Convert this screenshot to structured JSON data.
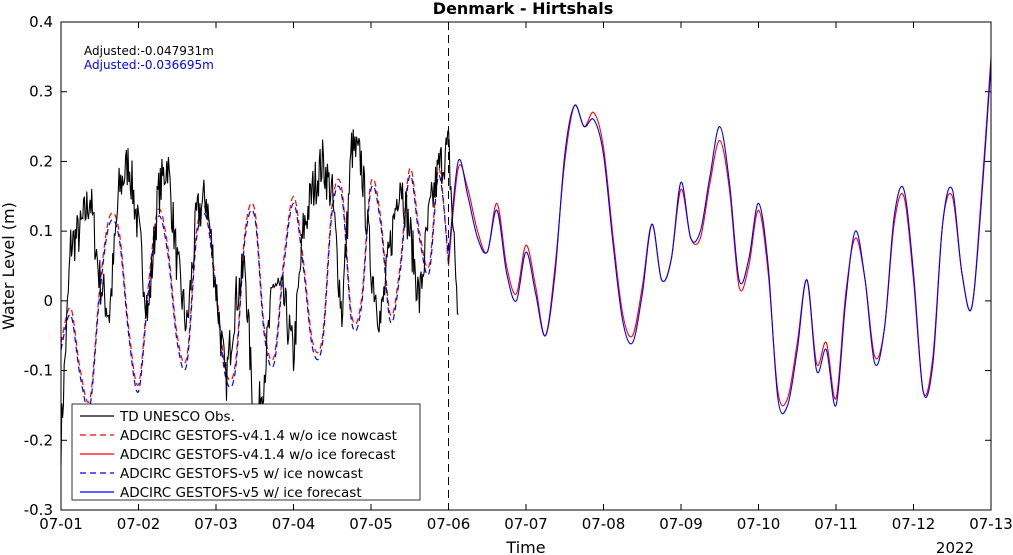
{
  "chart_data": {
    "type": "line",
    "title": "Denmark - Hirtshals",
    "xlabel": "Time",
    "ylabel": "Water Level (m)",
    "year_label": "2022",
    "xlim": [
      "2022-07-01",
      "2022-07-13"
    ],
    "ylim": [
      -0.3,
      0.4
    ],
    "x_ticks": [
      "07-01",
      "07-02",
      "07-03",
      "07-04",
      "07-05",
      "07-06",
      "07-07",
      "07-08",
      "07-09",
      "07-10",
      "07-11",
      "07-12",
      "07-13"
    ],
    "y_ticks": [
      "-0.3",
      "-0.2",
      "-0.1",
      "0",
      "0.1",
      "0.2",
      "0.3",
      "0.4"
    ],
    "nowcast_end_marker": "2022-07-06",
    "annotations": [
      {
        "text": "Adjusted:-0.047931m",
        "color": "#000000"
      },
      {
        "text": "Adjusted:-0.036695m",
        "color": "#0000ff"
      }
    ],
    "legend_location": "bottom-left",
    "series": [
      {
        "name": "TD UNESCO Obs.",
        "color": "#000000",
        "style": "solid",
        "noise": 0.035,
        "x": [
          "2022-07-01 00:00",
          "2022-07-01 03:00",
          "2022-07-01 06:00",
          "2022-07-01 09:00",
          "2022-07-01 12:00",
          "2022-07-01 15:00",
          "2022-07-01 18:00",
          "2022-07-01 21:00",
          "2022-07-02 00:00",
          "2022-07-02 03:00",
          "2022-07-02 06:00",
          "2022-07-02 09:00",
          "2022-07-02 12:00",
          "2022-07-02 15:00",
          "2022-07-02 18:00",
          "2022-07-02 21:00",
          "2022-07-03 00:00",
          "2022-07-03 03:00",
          "2022-07-03 06:00",
          "2022-07-03 09:00",
          "2022-07-03 12:00",
          "2022-07-03 15:00",
          "2022-07-03 18:00",
          "2022-07-03 21:00",
          "2022-07-04 00:00",
          "2022-07-04 03:00",
          "2022-07-04 06:00",
          "2022-07-04 09:00",
          "2022-07-04 12:00",
          "2022-07-04 15:00",
          "2022-07-04 18:00",
          "2022-07-04 21:00",
          "2022-07-05 00:00",
          "2022-07-05 03:00",
          "2022-07-05 06:00",
          "2022-07-05 09:00",
          "2022-07-05 12:00",
          "2022-07-05 15:00",
          "2022-07-05 18:00",
          "2022-07-05 21:00",
          "2022-07-06 00:00",
          "2022-07-06 03:00"
        ],
        "values": [
          -0.2,
          0.08,
          0.1,
          0.15,
          0.03,
          -0.02,
          0.16,
          0.2,
          0.1,
          -0.02,
          0.15,
          0.2,
          0.05,
          -0.04,
          0.12,
          0.15,
          0.02,
          -0.12,
          0.0,
          0.05,
          -0.2,
          -0.1,
          0.03,
          0.0,
          -0.08,
          0.1,
          0.16,
          0.2,
          0.15,
          -0.02,
          0.22,
          0.2,
          0.05,
          -0.03,
          0.08,
          0.18,
          0.1,
          0.0,
          0.12,
          0.19,
          0.22,
          -0.02
        ]
      },
      {
        "name": "ADCIRC GESTOFS-v4.1.4 w/o ice nowcast",
        "color": "#ff0000",
        "style": "dashed",
        "x": [
          "2022-07-01 00:00",
          "2022-07-01 03:00",
          "2022-07-01 06:00",
          "2022-07-01 09:00",
          "2022-07-01 12:00",
          "2022-07-01 15:00",
          "2022-07-01 18:00",
          "2022-07-01 21:00",
          "2022-07-02 00:00",
          "2022-07-02 03:00",
          "2022-07-02 06:00",
          "2022-07-02 09:00",
          "2022-07-02 12:00",
          "2022-07-02 15:00",
          "2022-07-02 18:00",
          "2022-07-02 21:00",
          "2022-07-03 00:00",
          "2022-07-03 03:00",
          "2022-07-03 06:00",
          "2022-07-03 09:00",
          "2022-07-03 12:00",
          "2022-07-03 15:00",
          "2022-07-03 18:00",
          "2022-07-03 21:00",
          "2022-07-04 00:00",
          "2022-07-04 03:00",
          "2022-07-04 06:00",
          "2022-07-04 09:00",
          "2022-07-04 12:00",
          "2022-07-04 15:00",
          "2022-07-04 18:00",
          "2022-07-04 21:00",
          "2022-07-05 00:00",
          "2022-07-05 03:00",
          "2022-07-05 06:00",
          "2022-07-05 09:00",
          "2022-07-05 12:00",
          "2022-07-05 15:00",
          "2022-07-05 18:00",
          "2022-07-05 21:00",
          "2022-07-06 00:00"
        ],
        "values": [
          -0.06,
          -0.01,
          -0.1,
          -0.14,
          0.02,
          0.12,
          0.1,
          -0.04,
          -0.12,
          0.02,
          0.13,
          0.08,
          -0.05,
          -0.08,
          0.1,
          0.13,
          0.02,
          -0.1,
          -0.09,
          0.1,
          0.13,
          -0.04,
          -0.08,
          0.06,
          0.15,
          0.06,
          -0.06,
          -0.05,
          0.14,
          0.16,
          -0.02,
          0.0,
          0.17,
          0.12,
          -0.02,
          0.05,
          0.19,
          0.1,
          0.05,
          0.19,
          0.05
        ]
      },
      {
        "name": "ADCIRC GESTOFS-v4.1.4 w/o ice forecast",
        "color": "#ff0000",
        "style": "solid",
        "x": [
          "2022-07-06 00:00",
          "2022-07-06 03:00",
          "2022-07-06 06:00",
          "2022-07-06 09:00",
          "2022-07-06 12:00",
          "2022-07-06 15:00",
          "2022-07-06 18:00",
          "2022-07-06 21:00",
          "2022-07-07 00:00",
          "2022-07-07 03:00",
          "2022-07-07 06:00",
          "2022-07-07 09:00",
          "2022-07-07 12:00",
          "2022-07-07 15:00",
          "2022-07-07 18:00",
          "2022-07-07 21:00",
          "2022-07-08 00:00",
          "2022-07-08 03:00",
          "2022-07-08 06:00",
          "2022-07-08 09:00",
          "2022-07-08 12:00",
          "2022-07-08 15:00",
          "2022-07-08 18:00",
          "2022-07-08 21:00",
          "2022-07-09 00:00",
          "2022-07-09 03:00",
          "2022-07-09 06:00",
          "2022-07-09 09:00",
          "2022-07-09 12:00",
          "2022-07-09 15:00",
          "2022-07-09 18:00",
          "2022-07-09 21:00",
          "2022-07-10 00:00",
          "2022-07-10 03:00",
          "2022-07-10 06:00",
          "2022-07-10 09:00",
          "2022-07-10 12:00",
          "2022-07-10 15:00",
          "2022-07-10 18:00",
          "2022-07-10 21:00",
          "2022-07-11 00:00",
          "2022-07-11 03:00",
          "2022-07-11 06:00",
          "2022-07-11 09:00",
          "2022-07-11 12:00",
          "2022-07-11 15:00",
          "2022-07-11 18:00",
          "2022-07-11 21:00",
          "2022-07-12 00:00",
          "2022-07-12 03:00",
          "2022-07-12 06:00",
          "2022-07-12 09:00",
          "2022-07-12 12:00",
          "2022-07-12 15:00",
          "2022-07-12 18:00",
          "2022-07-12 21:00",
          "2022-07-13 00:00"
        ],
        "values": [
          0.05,
          0.19,
          0.16,
          0.1,
          0.07,
          0.14,
          0.05,
          0.01,
          0.08,
          0.02,
          -0.05,
          0.05,
          0.2,
          0.28,
          0.25,
          0.27,
          0.22,
          0.09,
          -0.02,
          -0.05,
          0.02,
          0.11,
          0.03,
          0.06,
          0.16,
          0.09,
          0.09,
          0.17,
          0.23,
          0.16,
          0.02,
          0.05,
          0.13,
          0.04,
          -0.13,
          -0.14,
          -0.06,
          0.03,
          -0.09,
          -0.06,
          -0.14,
          0.01,
          0.09,
          0.03,
          -0.08,
          -0.04,
          0.11,
          0.15,
          0.03,
          -0.13,
          -0.08,
          0.11,
          0.15,
          0.04,
          -0.01,
          0.15,
          0.35
        ]
      },
      {
        "name": "ADCIRC GESTOFS-v5 w/ ice nowcast",
        "color": "#0000ff",
        "style": "dashed",
        "x": [
          "2022-07-01 00:00",
          "2022-07-01 03:00",
          "2022-07-01 06:00",
          "2022-07-01 09:00",
          "2022-07-01 12:00",
          "2022-07-01 15:00",
          "2022-07-01 18:00",
          "2022-07-01 21:00",
          "2022-07-02 00:00",
          "2022-07-02 03:00",
          "2022-07-02 06:00",
          "2022-07-02 09:00",
          "2022-07-02 12:00",
          "2022-07-02 15:00",
          "2022-07-02 18:00",
          "2022-07-02 21:00",
          "2022-07-03 00:00",
          "2022-07-03 03:00",
          "2022-07-03 06:00",
          "2022-07-03 09:00",
          "2022-07-03 12:00",
          "2022-07-03 15:00",
          "2022-07-03 18:00",
          "2022-07-03 21:00",
          "2022-07-04 00:00",
          "2022-07-04 03:00",
          "2022-07-04 06:00",
          "2022-07-04 09:00",
          "2022-07-04 12:00",
          "2022-07-04 15:00",
          "2022-07-04 18:00",
          "2022-07-04 21:00",
          "2022-07-05 00:00",
          "2022-07-05 03:00",
          "2022-07-05 06:00",
          "2022-07-05 09:00",
          "2022-07-05 12:00",
          "2022-07-05 15:00",
          "2022-07-05 18:00",
          "2022-07-05 21:00",
          "2022-07-06 00:00"
        ],
        "values": [
          -0.07,
          -0.02,
          -0.11,
          -0.15,
          0.01,
          0.11,
          0.09,
          -0.05,
          -0.13,
          0.01,
          0.12,
          0.07,
          -0.06,
          -0.09,
          0.09,
          0.12,
          0.01,
          -0.11,
          -0.1,
          0.09,
          0.12,
          -0.05,
          -0.09,
          0.05,
          0.14,
          0.05,
          -0.07,
          -0.06,
          0.13,
          0.15,
          -0.03,
          -0.01,
          0.16,
          0.11,
          -0.03,
          0.04,
          0.18,
          0.09,
          0.04,
          0.18,
          0.06
        ]
      },
      {
        "name": "ADCIRC GESTOFS-v5 w/ ice forecast",
        "color": "#0000ff",
        "style": "solid",
        "x": [
          "2022-07-06 00:00",
          "2022-07-06 03:00",
          "2022-07-06 06:00",
          "2022-07-06 09:00",
          "2022-07-06 12:00",
          "2022-07-06 15:00",
          "2022-07-06 18:00",
          "2022-07-06 21:00",
          "2022-07-07 00:00",
          "2022-07-07 03:00",
          "2022-07-07 06:00",
          "2022-07-07 09:00",
          "2022-07-07 12:00",
          "2022-07-07 15:00",
          "2022-07-07 18:00",
          "2022-07-07 21:00",
          "2022-07-08 00:00",
          "2022-07-08 03:00",
          "2022-07-08 06:00",
          "2022-07-08 09:00",
          "2022-07-08 12:00",
          "2022-07-08 15:00",
          "2022-07-08 18:00",
          "2022-07-08 21:00",
          "2022-07-09 00:00",
          "2022-07-09 03:00",
          "2022-07-09 06:00",
          "2022-07-09 09:00",
          "2022-07-09 12:00",
          "2022-07-09 15:00",
          "2022-07-09 18:00",
          "2022-07-09 21:00",
          "2022-07-10 00:00",
          "2022-07-10 03:00",
          "2022-07-10 06:00",
          "2022-07-10 09:00",
          "2022-07-10 12:00",
          "2022-07-10 15:00",
          "2022-07-10 18:00",
          "2022-07-10 21:00",
          "2022-07-11 00:00",
          "2022-07-11 03:00",
          "2022-07-11 06:00",
          "2022-07-11 09:00",
          "2022-07-11 12:00",
          "2022-07-11 15:00",
          "2022-07-11 18:00",
          "2022-07-11 21:00",
          "2022-07-12 00:00",
          "2022-07-12 03:00",
          "2022-07-12 06:00",
          "2022-07-12 09:00",
          "2022-07-12 12:00",
          "2022-07-12 15:00",
          "2022-07-12 18:00",
          "2022-07-12 21:00",
          "2022-07-13 00:00"
        ],
        "values": [
          0.06,
          0.2,
          0.15,
          0.09,
          0.07,
          0.13,
          0.04,
          0.0,
          0.07,
          0.01,
          -0.05,
          0.04,
          0.21,
          0.28,
          0.25,
          0.26,
          0.21,
          0.08,
          -0.03,
          -0.06,
          0.01,
          0.11,
          0.03,
          0.06,
          0.17,
          0.09,
          0.1,
          0.18,
          0.25,
          0.17,
          0.03,
          0.06,
          0.14,
          0.05,
          -0.14,
          -0.15,
          -0.07,
          0.03,
          -0.1,
          -0.07,
          -0.15,
          0.0,
          0.1,
          0.03,
          -0.09,
          -0.04,
          0.12,
          0.16,
          0.04,
          -0.13,
          -0.09,
          0.11,
          0.16,
          0.04,
          -0.01,
          0.14,
          0.34
        ]
      }
    ]
  }
}
